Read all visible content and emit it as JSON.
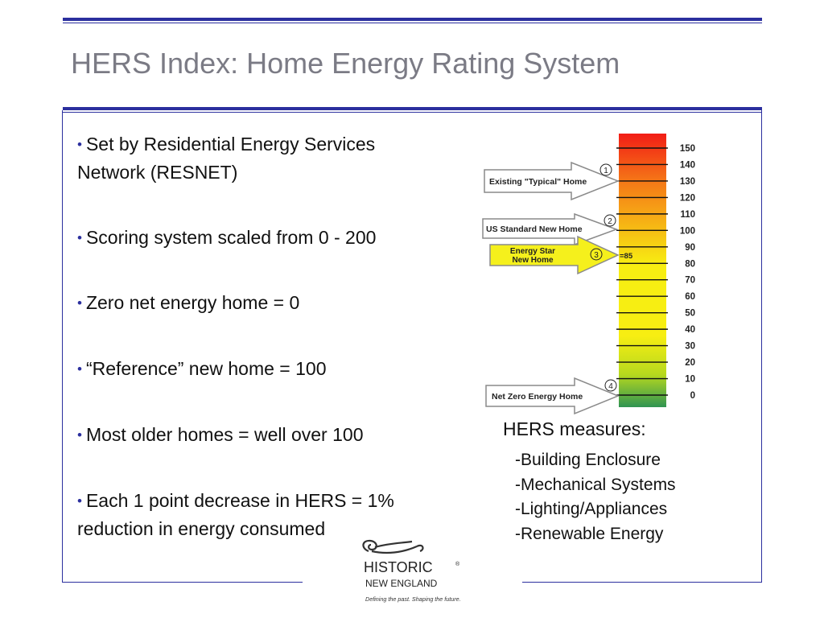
{
  "slide": {
    "title": "HERS Index: Home Energy Rating System",
    "bullets": [
      {
        "line1": "Set by Residential Energy Services",
        "line2": "Network (RESNET)"
      },
      {
        "line1": "Scoring system scaled from 0 - 200",
        "line2": ""
      },
      {
        "line1": "Zero net energy home = 0",
        "line2": ""
      },
      {
        "line1": "“Reference” new home = 100",
        "line2": ""
      },
      {
        "line1": "Most older homes = well over 100",
        "line2": ""
      },
      {
        "line1": "Each 1 point decrease in HERS = 1%",
        "line2": "reduction in energy consumed"
      }
    ],
    "measures": {
      "title": "HERS measures:",
      "items": [
        "-Building  Enclosure",
        "-Mechanical  Systems",
        "-Lighting/Appliances",
        "-Renewable Energy"
      ]
    }
  },
  "scale": {
    "ticks": [
      "150",
      "140",
      "130",
      "120",
      "110",
      "100",
      "90",
      "80",
      "70",
      "60",
      "50",
      "40",
      "30",
      "20",
      "10",
      "0"
    ],
    "colors": {
      "top": "#f21d16",
      "orange": "#f57a17",
      "yellow": "#f7ee12",
      "lime": "#b7d91e",
      "bottom": "#2f9452"
    },
    "markers": [
      {
        "label": "Existing \"Typical\" Home",
        "number": "1",
        "value": 130,
        "style": "outline"
      },
      {
        "label": "US Standard New Home",
        "number": "2",
        "value": 100,
        "style": "outline"
      },
      {
        "label_line1": "Energy Star",
        "label_line2": "New Home",
        "number": "3",
        "value": 85,
        "value_label": "=85",
        "style": "yellow"
      },
      {
        "label": "Net Zero Energy Home",
        "number": "4",
        "value": 0,
        "style": "outline"
      }
    ]
  },
  "logo": {
    "name": "HISTORIC",
    "registered": "®",
    "subname": "NEW ENGLAND",
    "tagline": "Defining the past. Shaping the future."
  }
}
